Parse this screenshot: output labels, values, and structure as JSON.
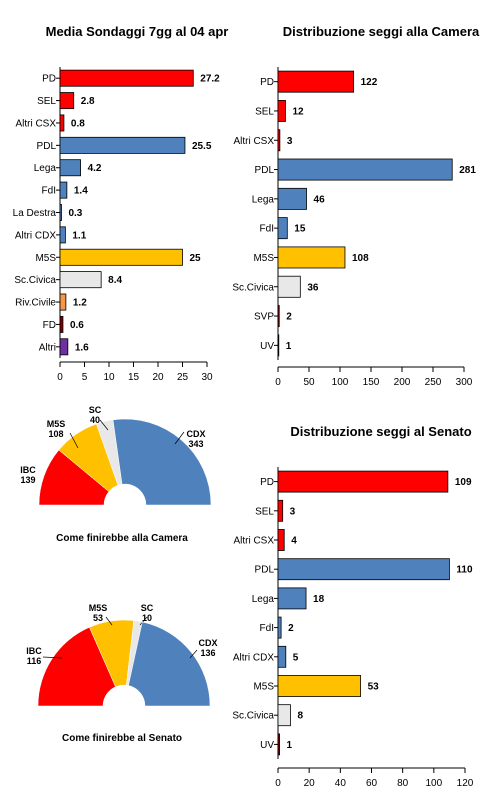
{
  "chart_data": [
    {
      "id": "sondaggi",
      "type": "bar",
      "orientation": "horizontal",
      "title": "Media Sondaggi 7gg al 04 apr",
      "categories": [
        "PD",
        "SEL",
        "Altri CSX",
        "PDL",
        "Lega",
        "FdI",
        "La Destra",
        "Altri CDX",
        "M5S",
        "Sc.Civica",
        "Riv.Civile",
        "FD",
        "Altri"
      ],
      "values": [
        27.2,
        2.8,
        0.8,
        25.5,
        4.2,
        1.4,
        0.3,
        1.1,
        25,
        8.4,
        1.2,
        0.6,
        1.6
      ],
      "value_labels": [
        "27.2",
        "2.8",
        "0.8",
        "25.5",
        "4.2",
        "1.4",
        "0.3",
        "1.1",
        "25",
        "8.4",
        "1.2",
        "0.6",
        "1.6"
      ],
      "colors": [
        "#ff0000",
        "#ff0000",
        "#ff0000",
        "#4f81bd",
        "#4f81bd",
        "#4f81bd",
        "#4f81bd",
        "#4f81bd",
        "#ffc000",
        "#e8e8e8",
        "#f79646",
        "#7f0000",
        "#7030a0"
      ],
      "xticks": [
        "0",
        "5",
        "10",
        "15",
        "20",
        "25",
        "30"
      ],
      "xlim": [
        0,
        30
      ]
    },
    {
      "id": "camera",
      "type": "bar",
      "orientation": "horizontal",
      "title": "Distribuzione seggi alla Camera",
      "categories": [
        "PD",
        "SEL",
        "Altri CSX",
        "PDL",
        "Lega",
        "FdI",
        "M5S",
        "Sc.Civica",
        "SVP",
        "UV"
      ],
      "values": [
        122,
        12,
        3,
        281,
        46,
        15,
        108,
        36,
        2,
        1
      ],
      "value_labels": [
        "122",
        "12",
        "3",
        "281",
        "46",
        "15",
        "108",
        "36",
        "2",
        "1"
      ],
      "colors": [
        "#ff0000",
        "#ff0000",
        "#ff0000",
        "#4f81bd",
        "#4f81bd",
        "#4f81bd",
        "#ffc000",
        "#e8e8e8",
        "#7f0000",
        "#7f0000"
      ],
      "xticks": [
        "0",
        "50",
        "100",
        "150",
        "200",
        "250",
        "300"
      ],
      "xlim": [
        0,
        300
      ]
    },
    {
      "id": "senato",
      "type": "bar",
      "orientation": "horizontal",
      "title": "Distribuzione seggi al Senato",
      "categories": [
        "PD",
        "SEL",
        "Altri CSX",
        "PDL",
        "Lega",
        "FdI",
        "Altri CDX",
        "M5S",
        "Sc.Civica",
        "UV"
      ],
      "values": [
        109,
        3,
        4,
        110,
        18,
        2,
        5,
        53,
        8,
        1
      ],
      "value_labels": [
        "109",
        "3",
        "4",
        "110",
        "18",
        "2",
        "5",
        "53",
        "8",
        "1"
      ],
      "colors": [
        "#ff0000",
        "#ff0000",
        "#ff0000",
        "#4f81bd",
        "#4f81bd",
        "#4f81bd",
        "#4f81bd",
        "#ffc000",
        "#e8e8e8",
        "#7f0000"
      ],
      "xticks": [
        "0",
        "20",
        "40",
        "60",
        "80",
        "100",
        "120"
      ],
      "xlim": [
        0,
        120
      ]
    },
    {
      "id": "pie-camera",
      "type": "pie",
      "subtype": "semicircle",
      "title": "Come finirebbe alla Camera",
      "slices": [
        {
          "name": "IBC",
          "value": 139,
          "label": "139",
          "color": "#ff0000"
        },
        {
          "name": "M5S",
          "value": 108,
          "label": "108",
          "color": "#ffc000"
        },
        {
          "name": "SC",
          "value": 40,
          "label": "40",
          "color": "#e8e8e8"
        },
        {
          "name": "CDX",
          "value": 343,
          "label": "343",
          "color": "#4f81bd"
        }
      ]
    },
    {
      "id": "pie-senato",
      "type": "pie",
      "subtype": "semicircle",
      "title": "Come finirebbe al Senato",
      "slices": [
        {
          "name": "IBC",
          "value": 116,
          "label": "116",
          "color": "#ff0000"
        },
        {
          "name": "M5S",
          "value": 53,
          "label": "53",
          "color": "#ffc000"
        },
        {
          "name": "SC",
          "value": 10,
          "label": "10",
          "color": "#e8e8e8"
        },
        {
          "name": "CDX",
          "value": 136,
          "label": "136",
          "color": "#4f81bd"
        }
      ]
    }
  ]
}
